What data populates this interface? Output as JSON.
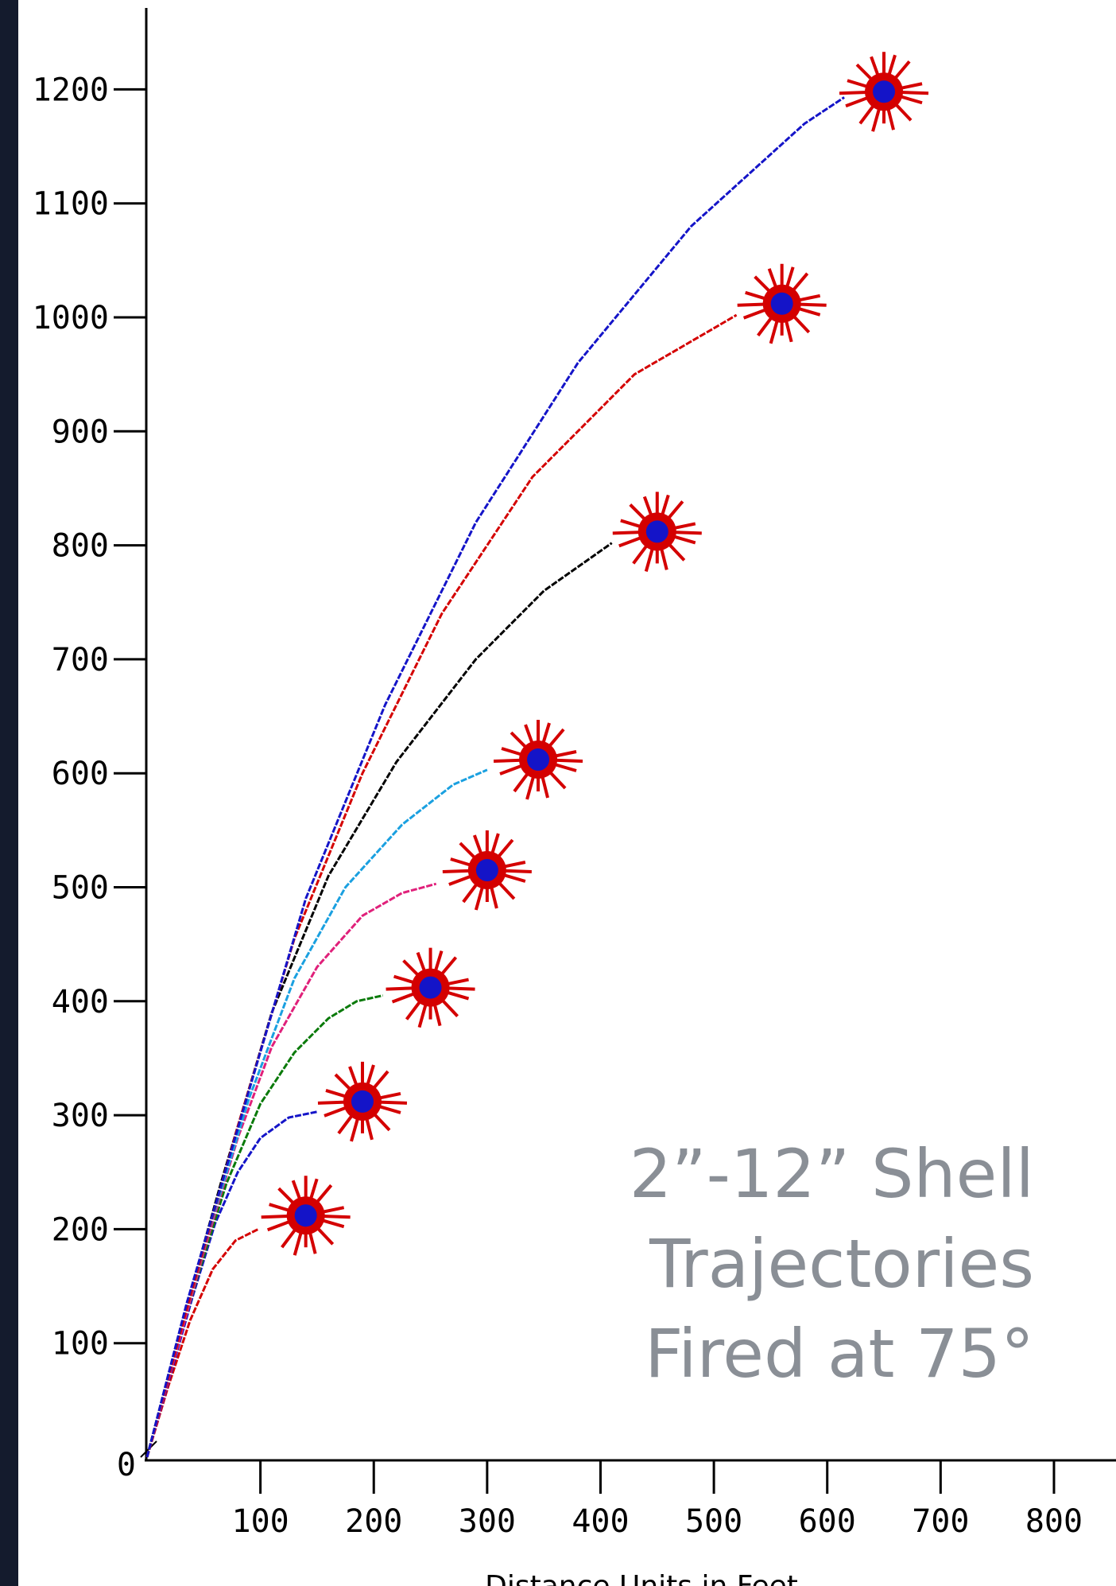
{
  "chart_data": {
    "type": "line",
    "title": "",
    "xlabel": "Distance Units in Feet",
    "ylabel": "",
    "xlim": [
      0,
      850
    ],
    "ylim": [
      0,
      1260
    ],
    "x_ticks": [
      "100",
      "200",
      "300",
      "400",
      "500",
      "600",
      "700",
      "800"
    ],
    "y_ticks": [
      "0",
      "100",
      "200",
      "300",
      "400",
      "500",
      "600",
      "700",
      "800",
      "900",
      "1000",
      "1100",
      "1200"
    ],
    "annotation": [
      "2”-12” Shell",
      "Trajectories",
      "Fired at 75°"
    ],
    "grid": false,
    "series": [
      {
        "color": "#d40000",
        "burst": [
          140,
          212
        ],
        "points": [
          [
            0,
            0
          ],
          [
            18,
            60
          ],
          [
            38,
            120
          ],
          [
            58,
            165
          ],
          [
            78,
            190
          ],
          [
            98,
            200
          ]
        ]
      },
      {
        "color": "#1414c8",
        "burst": [
          190,
          312
        ],
        "points": [
          [
            0,
            0
          ],
          [
            20,
            70
          ],
          [
            40,
            140
          ],
          [
            60,
            205
          ],
          [
            80,
            250
          ],
          [
            100,
            280
          ],
          [
            125,
            298
          ],
          [
            150,
            303
          ]
        ]
      },
      {
        "color": "#0a7a0a",
        "burst": [
          250,
          412
        ],
        "points": [
          [
            0,
            0
          ],
          [
            20,
            75
          ],
          [
            45,
            160
          ],
          [
            70,
            240
          ],
          [
            100,
            310
          ],
          [
            130,
            355
          ],
          [
            160,
            385
          ],
          [
            185,
            400
          ],
          [
            208,
            405
          ]
        ]
      },
      {
        "color": "#e0207a",
        "burst": [
          300,
          515
        ],
        "points": [
          [
            0,
            0
          ],
          [
            25,
            90
          ],
          [
            50,
            180
          ],
          [
            80,
            280
          ],
          [
            110,
            360
          ],
          [
            150,
            430
          ],
          [
            190,
            475
          ],
          [
            225,
            495
          ],
          [
            255,
            503
          ]
        ]
      },
      {
        "color": "#1aa0e0",
        "burst": [
          345,
          612
        ],
        "points": [
          [
            0,
            0
          ],
          [
            25,
            95
          ],
          [
            55,
            200
          ],
          [
            90,
            315
          ],
          [
            130,
            420
          ],
          [
            175,
            500
          ],
          [
            225,
            555
          ],
          [
            270,
            590
          ],
          [
            300,
            603
          ]
        ]
      },
      {
        "color": "#000000",
        "burst": [
          450,
          812
        ],
        "points": [
          [
            0,
            0
          ],
          [
            30,
            115
          ],
          [
            65,
            240
          ],
          [
            110,
            390
          ],
          [
            160,
            510
          ],
          [
            220,
            610
          ],
          [
            290,
            700
          ],
          [
            350,
            760
          ],
          [
            410,
            802
          ]
        ]
      },
      {
        "color": "#d40000",
        "burst": [
          560,
          1012
        ],
        "points": [
          [
            0,
            0
          ],
          [
            35,
            130
          ],
          [
            80,
            290
          ],
          [
            130,
            455
          ],
          [
            190,
            600
          ],
          [
            260,
            740
          ],
          [
            340,
            860
          ],
          [
            430,
            950
          ],
          [
            520,
            1002
          ]
        ]
      },
      {
        "color": "#1414c8",
        "burst": [
          650,
          1198
        ],
        "points": [
          [
            0,
            0
          ],
          [
            35,
            135
          ],
          [
            85,
            305
          ],
          [
            140,
            490
          ],
          [
            210,
            660
          ],
          [
            290,
            820
          ],
          [
            380,
            960
          ],
          [
            480,
            1080
          ],
          [
            580,
            1170
          ],
          [
            615,
            1193
          ]
        ]
      }
    ]
  }
}
